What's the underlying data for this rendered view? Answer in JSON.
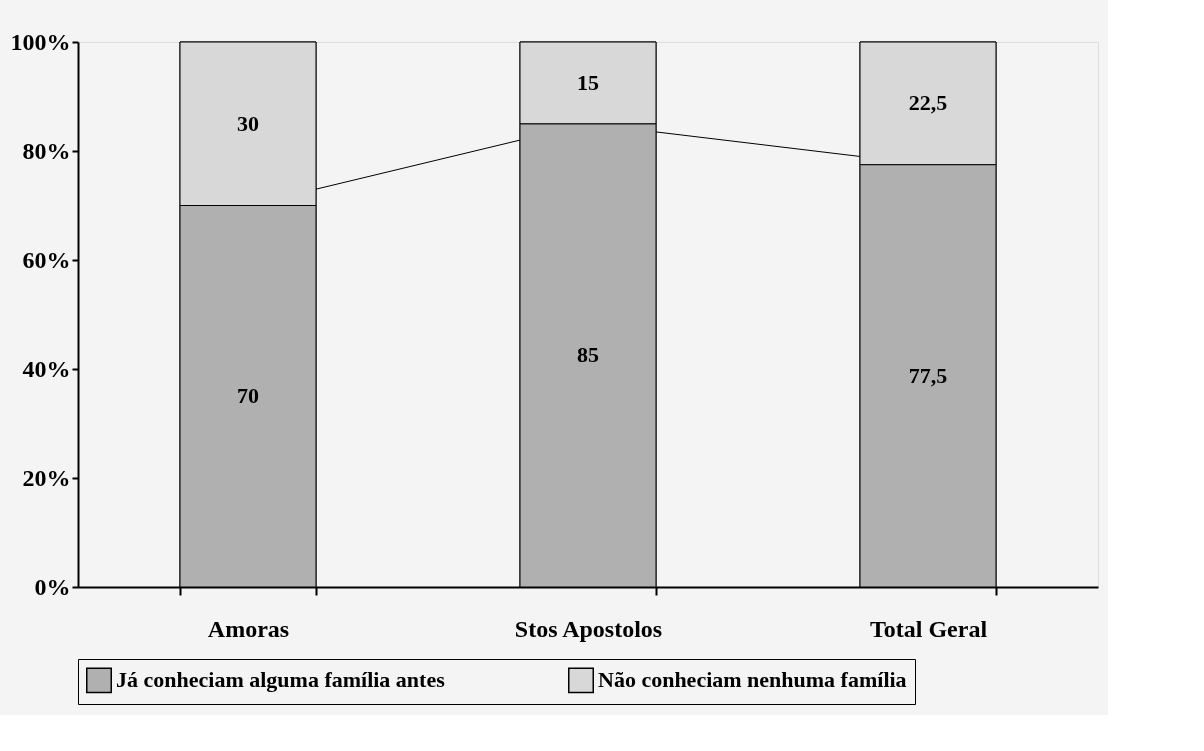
{
  "chart_data": {
    "type": "bar",
    "stacked": true,
    "categories": [
      "Amoras",
      "Stos Apostolos",
      "Total Geral"
    ],
    "series": [
      {
        "name": "Já conheciam alguma família antes",
        "color": "#b0b0b0",
        "values": [
          70,
          85,
          77.5
        ],
        "value_labels": [
          "70",
          "85",
          "77,5"
        ]
      },
      {
        "name": "Não conheciam nenhuma família",
        "color": "#d8d8d8",
        "values": [
          30,
          15,
          22.5
        ],
        "value_labels": [
          "30",
          "15",
          "22,5"
        ]
      }
    ],
    "ylim": [
      0,
      100
    ],
    "yticks": [
      {
        "value": 0,
        "label": "0%"
      },
      {
        "value": 20,
        "label": "20%"
      },
      {
        "value": 40,
        "label": "40%"
      },
      {
        "value": 60,
        "label": "60%"
      },
      {
        "value": 80,
        "label": "80%"
      },
      {
        "value": 100,
        "label": "100%"
      }
    ],
    "grid": false,
    "legend": "bottom"
  }
}
